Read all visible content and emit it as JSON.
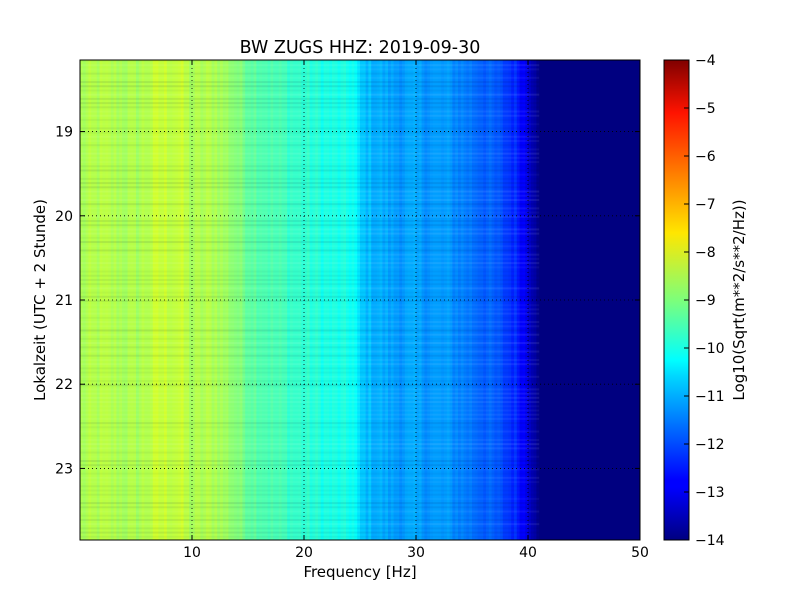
{
  "chart_data": {
    "type": "heatmap",
    "title": "BW ZUGS HHZ: 2019-09-30",
    "xlabel": "Frequency [Hz]",
    "ylabel": "Lokalzeit (UTC + 2 Stunde)",
    "colorbar_label": "Log10(Sqrt(m**2/s**2/Hz))",
    "xlim": [
      0,
      50
    ],
    "ylim_hours": [
      18.15,
      23.85
    ],
    "y_axis_inverted": true,
    "x_ticks": [
      10,
      20,
      30,
      40,
      50
    ],
    "y_ticks": [
      19,
      20,
      21,
      22,
      23
    ],
    "colorbar_range": [
      -14,
      -4
    ],
    "colorbar_ticks": [
      -4,
      -5,
      -6,
      -7,
      -8,
      -9,
      -10,
      -11,
      -12,
      -13,
      -14
    ],
    "colormap": "jet",
    "grid": true,
    "grid_style": "dotted",
    "spectral_profile": {
      "frequency_hz": [
        0,
        2,
        5,
        7,
        9,
        10,
        12,
        13.5,
        15,
        17,
        20,
        22,
        24.5,
        25,
        28,
        30,
        33,
        35,
        37,
        39,
        40,
        40.5,
        41,
        45,
        50
      ],
      "log10_amplitude": [
        -8.6,
        -8.5,
        -8.6,
        -8.3,
        -8.3,
        -8.6,
        -8.5,
        -8.8,
        -9.2,
        -9.5,
        -9.8,
        -10.0,
        -10.1,
        -10.8,
        -11.2,
        -11.2,
        -11.3,
        -11.6,
        -11.9,
        -12.4,
        -13.0,
        -13.5,
        -14.0,
        -14.0,
        -14.0
      ]
    }
  }
}
